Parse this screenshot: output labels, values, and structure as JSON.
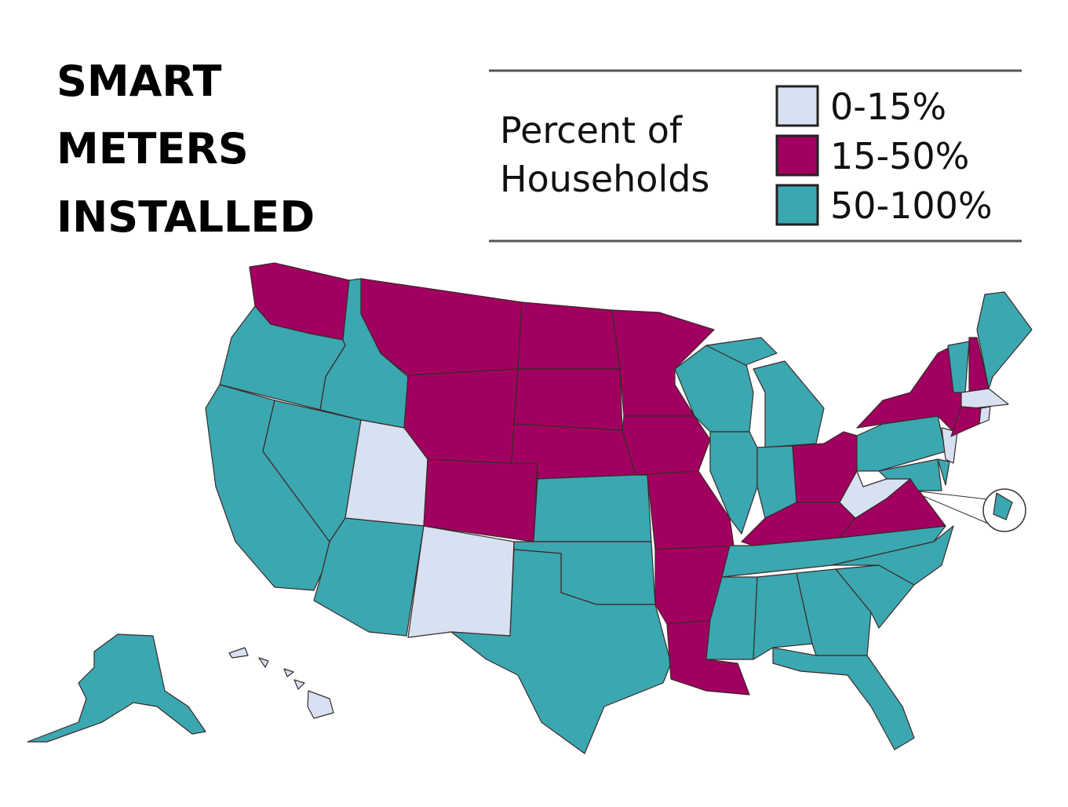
{
  "title": {
    "lines": [
      "SMART",
      "METERS",
      "INSTALLED"
    ]
  },
  "legend": {
    "title_lines": [
      "Percent of",
      "Households"
    ],
    "items": [
      {
        "label": "0-15%",
        "color": "#d7e1f1"
      },
      {
        "label": "15-50%",
        "color": "#a10060"
      },
      {
        "label": "50-100%",
        "color": "#3ba7b1"
      }
    ]
  },
  "regions": [
    "15-50%",
    "50-100%",
    "50-100%",
    "50-100%",
    "50-100%",
    "15-50%",
    "15-50%",
    "0-15%",
    "15-50%",
    "50-100%",
    "0-15%",
    "15-50%",
    "15-50%",
    "15-50%",
    "50-100%",
    "50-100%",
    "50-100%",
    "15-50%",
    "15-50%",
    "15-50%",
    "15-50%",
    "15-50%",
    "50-100%",
    "50-100%",
    "50-100%",
    "50-100%",
    "15-50%",
    "15-50%",
    "50-100%",
    "50-100%",
    "50-100%",
    "50-100%",
    "50-100%",
    "50-100%",
    "50-100%",
    "15-50%",
    "0-15%",
    "50-100%",
    "50-100%",
    "50-100%",
    "0-15%",
    "15-50%",
    "50-100%",
    "15-50%",
    "50-100%",
    "0-15%",
    "15-50%",
    "0-15%",
    "50-100%",
    "50-100%",
    "0-15%"
  ]
}
